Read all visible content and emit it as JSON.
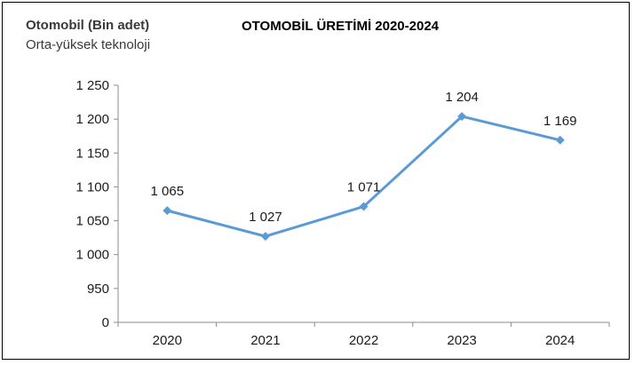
{
  "header": {
    "unit_title": "Otomobil (Bin adet)",
    "unit_subtitle": "Orta-yüksek teknoloji",
    "chart_title": "OTOMOBİL ÜRETİMİ 2020-2024"
  },
  "chart_data": {
    "type": "line",
    "title": "OTOMOBİL ÜRETİMİ 2020-2024",
    "xlabel": "",
    "ylabel": "Otomobil (Bin adet)",
    "categories": [
      "2020",
      "2021",
      "2022",
      "2023",
      "2024"
    ],
    "series": [
      {
        "values": [
          1065,
          1027,
          1071,
          1204,
          1169
        ],
        "data_labels": [
          "1 065",
          "1 027",
          "1 071",
          "1 204",
          "1 169"
        ],
        "color": "#5b9bd5"
      }
    ],
    "y_axis_break": true,
    "ylim": [
      950,
      1250
    ],
    "yticks": [
      0,
      950,
      1000,
      1050,
      1100,
      1150,
      1200,
      1250
    ],
    "ytick_labels": [
      "0",
      "950",
      "1 000",
      "1 050",
      "1 100",
      "1 150",
      "1 200",
      "1 250"
    ],
    "grid": false,
    "legend": "none"
  }
}
